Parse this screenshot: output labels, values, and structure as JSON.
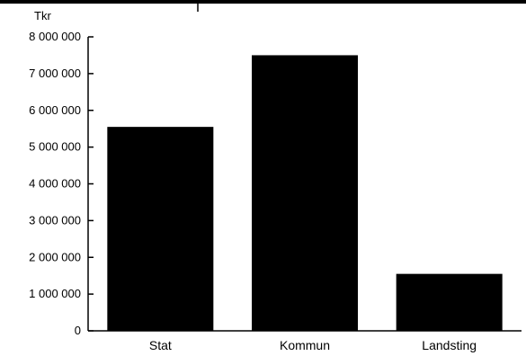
{
  "chart_data": {
    "type": "bar",
    "unit_label": "Tkr",
    "categories": [
      "Stat",
      "Kommun",
      "Landsting"
    ],
    "values": [
      5550000,
      7500000,
      1550000
    ],
    "ylim": [
      0,
      8000000
    ],
    "y_ticks": [
      {
        "value": 0,
        "label": "0"
      },
      {
        "value": 1000000,
        "label": "1 000 000"
      },
      {
        "value": 2000000,
        "label": "2 000 000"
      },
      {
        "value": 3000000,
        "label": "3 000 000"
      },
      {
        "value": 4000000,
        "label": "4 000 000"
      },
      {
        "value": 5000000,
        "label": "5 000 000"
      },
      {
        "value": 6000000,
        "label": "6 000 000"
      },
      {
        "value": 7000000,
        "label": "7 000 000"
      },
      {
        "value": 8000000,
        "label": "8 000 000"
      }
    ],
    "bar_color": "#000000",
    "grid": false
  }
}
